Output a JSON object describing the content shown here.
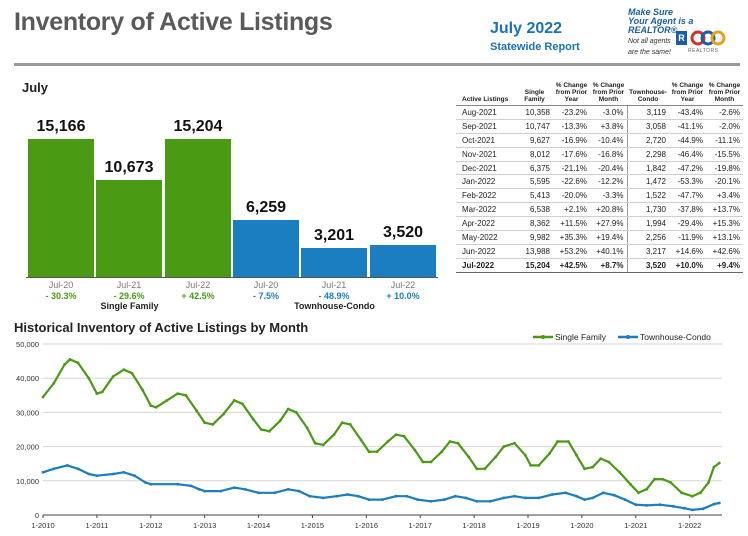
{
  "header": {
    "title": "Inventory of Active Listings",
    "date": "July 2022",
    "subtitle": "Statewide Report",
    "logo_line1": "Make Sure",
    "logo_line2": "Your Agent is a REALTOR®",
    "logo_line3": "Not all agents",
    "logo_line4": "are the same!",
    "logo_r": "R",
    "logo_assoc": "REALTORS"
  },
  "colors": {
    "single_family": "#4a9a14",
    "townhouse": "#1a7ec0",
    "title_gray": "#5a5a5a",
    "blue_text": "#1a73b8"
  },
  "bar_section": {
    "month": "July",
    "groups": [
      {
        "label": "Single Family",
        "bars": [
          {
            "year": "Jul-20",
            "value": 15166,
            "display": "15,166",
            "change": "- 30.3%"
          },
          {
            "year": "Jul-21",
            "value": 10673,
            "display": "10,673",
            "change": "- 29.6%"
          },
          {
            "year": "Jul-22",
            "value": 15204,
            "display": "15,204",
            "change": "+ 42.5%"
          }
        ]
      },
      {
        "label": "Townhouse-Condo",
        "bars": [
          {
            "year": "Jul-20",
            "value": 6259,
            "display": "6,259",
            "change": "- 7.5%"
          },
          {
            "year": "Jul-21",
            "value": 3201,
            "display": "3,201",
            "change": "- 48.9%"
          },
          {
            "year": "Jul-22",
            "value": 3520,
            "display": "3,520",
            "change": "+ 10.0%"
          }
        ]
      }
    ]
  },
  "table": {
    "headers": [
      "Active Listings",
      "Single Family",
      "% Change from Prior Year",
      "% Change from Prior Month",
      "Townhouse-Condo",
      "% Change from Prior Year",
      "% Change from Prior Month"
    ],
    "rows": [
      [
        "Aug-2021",
        "10,358",
        "-23.2%",
        "-3.0%",
        "3,119",
        "-43.4%",
        "-2.6%"
      ],
      [
        "Sep-2021",
        "10,747",
        "-13.3%",
        "+3.8%",
        "3,058",
        "-41.1%",
        "-2.0%"
      ],
      [
        "Oct-2021",
        "9,627",
        "-16.9%",
        "-10.4%",
        "2,720",
        "-44.9%",
        "-11.1%"
      ],
      [
        "Nov-2021",
        "8,012",
        "-17.6%",
        "-16.8%",
        "2,298",
        "-46.4%",
        "-15.5%"
      ],
      [
        "Dec-2021",
        "6,375",
        "-21.1%",
        "-20.4%",
        "1,842",
        "-47.2%",
        "-19.8%"
      ],
      [
        "Jan-2022",
        "5,595",
        "-22.6%",
        "-12.2%",
        "1,472",
        "-53.3%",
        "-20.1%"
      ],
      [
        "Feb-2022",
        "5,413",
        "-20.0%",
        "-3.3%",
        "1,522",
        "-47.7%",
        "+3.4%"
      ],
      [
        "Mar-2022",
        "6,538",
        "+2.1%",
        "+20.8%",
        "1,730",
        "-37.8%",
        "+13.7%"
      ],
      [
        "Apr-2022",
        "8,362",
        "+11.5%",
        "+27.9%",
        "1,994",
        "-29.4%",
        "+15.3%"
      ],
      [
        "May-2022",
        "9,982",
        "+35.3%",
        "+19.4%",
        "2,256",
        "-11.9%",
        "+13.1%"
      ],
      [
        "Jun-2022",
        "13,988",
        "+53.2%",
        "+40.1%",
        "3,217",
        "+14.6%",
        "+42.6%"
      ],
      [
        "Jul-2022",
        "15,204",
        "+42.5%",
        "+8.7%",
        "3,520",
        "+10.0%",
        "+9.4%"
      ]
    ]
  },
  "chart_data": {
    "type": "line",
    "title": "Historical Inventory of Active Listings by Month",
    "ylim": [
      0,
      50000
    ],
    "yticks": [
      "0",
      "10,000",
      "20,000",
      "30,000",
      "40,000",
      "50,000"
    ],
    "xticks": [
      "1-2010",
      "1-2011",
      "1-2012",
      "1-2013",
      "1-2014",
      "1-2015",
      "1-2016",
      "1-2017",
      "1-2018",
      "1-2019",
      "1-2020",
      "1-2021",
      "1-2022"
    ],
    "grid": true,
    "legend_position": "top-right",
    "series": [
      {
        "name": "Single Family",
        "keypoints": [
          [
            2010.0,
            34500
          ],
          [
            2010.2,
            38500
          ],
          [
            2010.4,
            44000
          ],
          [
            2010.5,
            45500
          ],
          [
            2010.65,
            44500
          ],
          [
            2010.85,
            40000
          ],
          [
            2011.0,
            35500
          ],
          [
            2011.1,
            36000
          ],
          [
            2011.3,
            40500
          ],
          [
            2011.5,
            42500
          ],
          [
            2011.65,
            41500
          ],
          [
            2011.85,
            36500
          ],
          [
            2012.0,
            32000
          ],
          [
            2012.1,
            31500
          ],
          [
            2012.3,
            33500
          ],
          [
            2012.5,
            35500
          ],
          [
            2012.65,
            35000
          ],
          [
            2012.85,
            30500
          ],
          [
            2013.0,
            27000
          ],
          [
            2013.15,
            26500
          ],
          [
            2013.35,
            29500
          ],
          [
            2013.55,
            33500
          ],
          [
            2013.7,
            32500
          ],
          [
            2013.9,
            28000
          ],
          [
            2014.05,
            25000
          ],
          [
            2014.2,
            24500
          ],
          [
            2014.4,
            27500
          ],
          [
            2014.55,
            31000
          ],
          [
            2014.7,
            30000
          ],
          [
            2014.9,
            25500
          ],
          [
            2015.05,
            21000
          ],
          [
            2015.2,
            20500
          ],
          [
            2015.4,
            23500
          ],
          [
            2015.55,
            27000
          ],
          [
            2015.7,
            26500
          ],
          [
            2015.9,
            22000
          ],
          [
            2016.05,
            18500
          ],
          [
            2016.2,
            18500
          ],
          [
            2016.4,
            21500
          ],
          [
            2016.55,
            23500
          ],
          [
            2016.7,
            23000
          ],
          [
            2016.9,
            19000
          ],
          [
            2017.05,
            15500
          ],
          [
            2017.2,
            15500
          ],
          [
            2017.4,
            18500
          ],
          [
            2017.55,
            21500
          ],
          [
            2017.7,
            21000
          ],
          [
            2017.9,
            17000
          ],
          [
            2018.05,
            13500
          ],
          [
            2018.2,
            13500
          ],
          [
            2018.4,
            17000
          ],
          [
            2018.55,
            20000
          ],
          [
            2018.75,
            21000
          ],
          [
            2018.95,
            17500
          ],
          [
            2019.05,
            14500
          ],
          [
            2019.2,
            14500
          ],
          [
            2019.4,
            18000
          ],
          [
            2019.55,
            21500
          ],
          [
            2019.75,
            21500
          ],
          [
            2019.9,
            17500
          ],
          [
            2020.05,
            13500
          ],
          [
            2020.2,
            14000
          ],
          [
            2020.35,
            16500
          ],
          [
            2020.5,
            15500
          ],
          [
            2020.7,
            12500
          ],
          [
            2020.9,
            9000
          ],
          [
            2021.05,
            6500
          ],
          [
            2021.2,
            7500
          ],
          [
            2021.35,
            10500
          ],
          [
            2021.5,
            10500
          ],
          [
            2021.65,
            9500
          ],
          [
            2021.85,
            6500
          ],
          [
            2022.05,
            5500
          ],
          [
            2022.2,
            6500
          ],
          [
            2022.35,
            9500
          ],
          [
            2022.45,
            14000
          ],
          [
            2022.55,
            15200
          ]
        ]
      },
      {
        "name": "Townhouse-Condo",
        "keypoints": [
          [
            2010.0,
            12500
          ],
          [
            2010.2,
            13500
          ],
          [
            2010.45,
            14500
          ],
          [
            2010.65,
            13500
          ],
          [
            2010.85,
            12000
          ],
          [
            2011.0,
            11500
          ],
          [
            2011.3,
            12000
          ],
          [
            2011.5,
            12500
          ],
          [
            2011.7,
            11500
          ],
          [
            2011.9,
            9500
          ],
          [
            2012.0,
            9000
          ],
          [
            2012.5,
            9000
          ],
          [
            2012.75,
            8500
          ],
          [
            2012.9,
            7500
          ],
          [
            2013.0,
            7000
          ],
          [
            2013.3,
            7000
          ],
          [
            2013.55,
            8000
          ],
          [
            2013.75,
            7500
          ],
          [
            2014.0,
            6500
          ],
          [
            2014.3,
            6500
          ],
          [
            2014.55,
            7500
          ],
          [
            2014.75,
            7000
          ],
          [
            2014.95,
            5500
          ],
          [
            2015.2,
            5000
          ],
          [
            2015.45,
            5500
          ],
          [
            2015.65,
            6000
          ],
          [
            2015.85,
            5500
          ],
          [
            2016.05,
            4500
          ],
          [
            2016.3,
            4500
          ],
          [
            2016.55,
            5500
          ],
          [
            2016.75,
            5500
          ],
          [
            2016.95,
            4500
          ],
          [
            2017.2,
            4000
          ],
          [
            2017.45,
            4500
          ],
          [
            2017.65,
            5500
          ],
          [
            2017.85,
            5000
          ],
          [
            2018.05,
            4000
          ],
          [
            2018.3,
            4000
          ],
          [
            2018.55,
            5000
          ],
          [
            2018.75,
            5500
          ],
          [
            2018.95,
            5000
          ],
          [
            2019.2,
            5000
          ],
          [
            2019.45,
            6000
          ],
          [
            2019.7,
            6500
          ],
          [
            2019.9,
            5500
          ],
          [
            2020.05,
            4500
          ],
          [
            2020.2,
            5000
          ],
          [
            2020.4,
            6500
          ],
          [
            2020.6,
            5800
          ],
          [
            2020.8,
            4500
          ],
          [
            2021.0,
            3000
          ],
          [
            2021.2,
            2800
          ],
          [
            2021.45,
            3000
          ],
          [
            2021.7,
            2500
          ],
          [
            2021.9,
            2000
          ],
          [
            2022.05,
            1500
          ],
          [
            2022.25,
            1800
          ],
          [
            2022.45,
            3200
          ],
          [
            2022.55,
            3500
          ]
        ]
      }
    ]
  }
}
